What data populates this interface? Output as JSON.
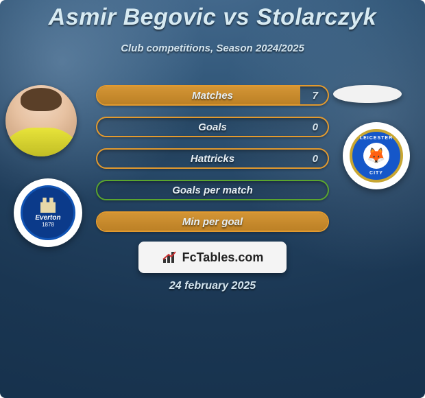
{
  "title": "Asmir Begovic vs Stolarczyk",
  "subtitle": "Club competitions, Season 2024/2025",
  "date_text": "24 february 2025",
  "colors": {
    "title": "#d7eaf2",
    "subtitle": "#d3e4ee",
    "stat_text": "#e6eef3",
    "stat_value": "#d8e6ef",
    "bg_grad_inner": "#4a6f93",
    "bg_grad_outer": "#16314c",
    "orange_border": "#e39a2e",
    "orange_fill": "#d18f2a",
    "green_border": "#5aa52e",
    "green_fill": "#4f9928",
    "footer_bg": "#f4f4f4"
  },
  "left": {
    "player_name": "Asmir Begovic",
    "club_label": "Everton",
    "club_year": "1878"
  },
  "right": {
    "player_name": "Stolarczyk",
    "club_top": "LEICESTER",
    "club_bot": "CITY",
    "club_icon": "🦊"
  },
  "stats": [
    {
      "label": "Matches",
      "value": "7",
      "show_value": true,
      "fill_pct": 88,
      "border": "#e39a2e",
      "fill_color": "#d18f2a"
    },
    {
      "label": "Goals",
      "value": "0",
      "show_value": true,
      "fill_pct": 0,
      "border": "#e39a2e",
      "fill_color": "#d18f2a"
    },
    {
      "label": "Hattricks",
      "value": "0",
      "show_value": true,
      "fill_pct": 0,
      "border": "#e39a2e",
      "fill_color": "#d18f2a"
    },
    {
      "label": "Goals per match",
      "value": "",
      "show_value": false,
      "fill_pct": 0,
      "border": "#5aa52e",
      "fill_color": "#4f9928"
    },
    {
      "label": "Min per goal",
      "value": "",
      "show_value": false,
      "fill_pct": 100,
      "border": "#e39a2e",
      "fill_color": "#d18f2a"
    }
  ],
  "footer_brand": "FcTables.com"
}
